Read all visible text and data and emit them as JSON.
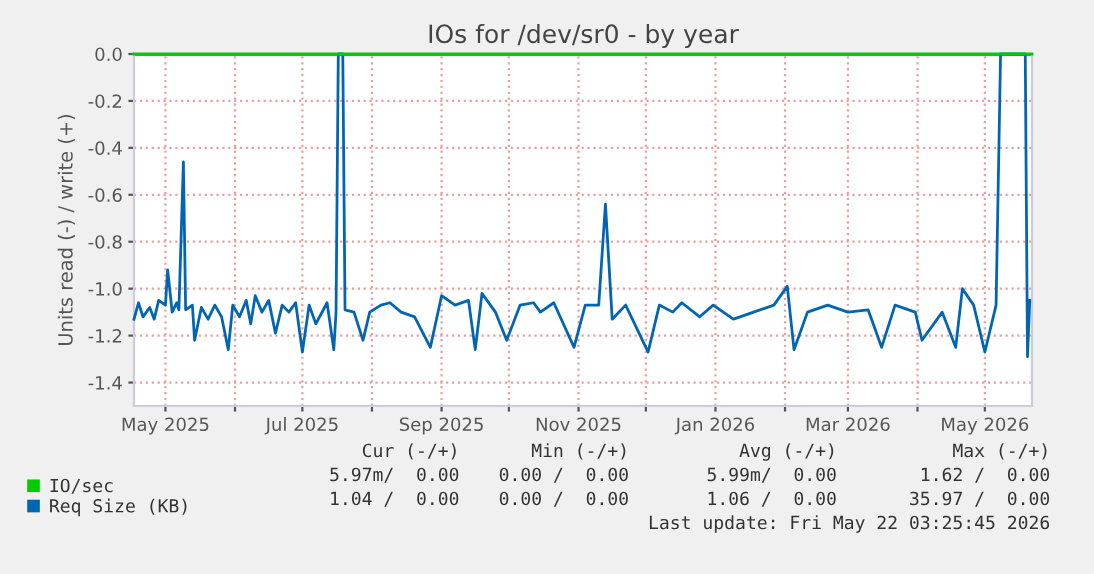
{
  "chart_data": {
    "type": "line",
    "title": "IOs for /dev/sr0 - by year",
    "ylabel": "Units read (-) / write (+)",
    "xlim": [
      "2025-04-17",
      "2026-05-22"
    ],
    "xticks": [
      {
        "value": "2025-05-01",
        "label": "May 2025"
      },
      {
        "value": "2025-06-01",
        "label": null
      },
      {
        "value": "2025-07-01",
        "label": "Jul 2025"
      },
      {
        "value": "2025-08-01",
        "label": null
      },
      {
        "value": "2025-09-01",
        "label": "Sep 2025"
      },
      {
        "value": "2025-10-01",
        "label": null
      },
      {
        "value": "2025-11-01",
        "label": "Nov 2025"
      },
      {
        "value": "2025-12-01",
        "label": null
      },
      {
        "value": "2026-01-01",
        "label": "Jan 2026"
      },
      {
        "value": "2026-02-01",
        "label": null
      },
      {
        "value": "2026-03-01",
        "label": "Mar 2026"
      },
      {
        "value": "2026-04-01",
        "label": null
      },
      {
        "value": "2026-05-01",
        "label": "May 2026"
      }
    ],
    "ylim": [
      -1.5,
      0
    ],
    "yticks": [
      {
        "value": -1.4,
        "label": "-1.4"
      },
      {
        "value": -1.2,
        "label": "-1.2"
      },
      {
        "value": -1.0,
        "label": "-1.0"
      },
      {
        "value": -0.8,
        "label": "-0.8"
      },
      {
        "value": -0.6,
        "label": "-0.6"
      },
      {
        "value": -0.4,
        "label": "-0.4"
      },
      {
        "value": -0.2,
        "label": "-0.2"
      },
      {
        "value": 0,
        "label": "0.0"
      }
    ],
    "grid": true,
    "legend": "bottom left",
    "ref_lines": [
      {
        "axis": "y",
        "value": 0,
        "color": "#000000"
      }
    ],
    "series": [
      {
        "name": "IO/sec",
        "color": "#00cc00",
        "x": [
          "2025-04-17",
          "2026-05-22"
        ],
        "values": [
          0,
          0
        ]
      },
      {
        "name": "Req Size (KB)",
        "color": "#0066b3",
        "x": [
          "2025-04-17",
          "2025-04-19",
          "2025-04-21",
          "2025-04-24",
          "2025-04-26",
          "2025-04-28",
          "2025-05-01",
          "2025-05-02",
          "2025-05-04",
          "2025-05-06",
          "2025-05-07",
          "2025-05-09",
          "2025-05-10",
          "2025-05-13",
          "2025-05-14",
          "2025-05-17",
          "2025-05-20",
          "2025-05-23",
          "2025-05-26",
          "2025-05-29",
          "2025-05-31",
          "2025-06-03",
          "2025-06-06",
          "2025-06-08",
          "2025-06-10",
          "2025-06-13",
          "2025-06-16",
          "2025-06-19",
          "2025-06-22",
          "2025-06-25",
          "2025-06-28",
          "2025-07-01",
          "2025-07-04",
          "2025-07-07",
          "2025-07-12",
          "2025-07-15",
          "2025-07-16",
          "2025-07-17",
          "2025-07-19",
          "2025-07-20",
          "2025-07-24",
          "2025-07-28",
          "2025-07-31",
          "2025-08-05",
          "2025-08-09",
          "2025-08-14",
          "2025-08-20",
          "2025-08-27",
          "2025-09-01",
          "2025-09-07",
          "2025-09-13",
          "2025-09-16",
          "2025-09-19",
          "2025-09-25",
          "2025-09-30",
          "2025-10-06",
          "2025-10-12",
          "2025-10-15",
          "2025-10-21",
          "2025-10-30",
          "2025-11-04",
          "2025-11-10",
          "2025-11-13",
          "2025-11-16",
          "2025-11-22",
          "2025-12-02",
          "2025-12-07",
          "2025-12-13",
          "2025-12-17",
          "2025-12-25",
          "2025-12-31",
          "2026-01-09",
          "2026-01-18",
          "2026-01-27",
          "2026-02-02",
          "2026-02-05",
          "2026-02-11",
          "2026-02-20",
          "2026-03-01",
          "2026-03-10",
          "2026-03-16",
          "2026-03-22",
          "2026-03-31",
          "2026-04-03",
          "2026-04-12",
          "2026-04-18",
          "2026-04-21",
          "2026-04-26",
          "2026-05-01",
          "2026-05-06",
          "2026-05-08",
          "2026-05-19",
          "2026-05-20",
          "2026-05-21"
        ],
        "values": [
          -1.13,
          -1.06,
          -1.12,
          -1.08,
          -1.13,
          -1.05,
          -1.07,
          -0.92,
          -1.1,
          -1.06,
          -1.09,
          -0.46,
          -1.09,
          -1.07,
          -1.22,
          -1.08,
          -1.13,
          -1.07,
          -1.12,
          -1.26,
          -1.07,
          -1.12,
          -1.05,
          -1.15,
          -1.03,
          -1.1,
          -1.05,
          -1.19,
          -1.07,
          -1.1,
          -1.06,
          -1.27,
          -1.07,
          -1.15,
          -1.06,
          -1.26,
          -1.1,
          0,
          0,
          -1.09,
          -1.1,
          -1.22,
          -1.1,
          -1.07,
          -1.06,
          -1.1,
          -1.12,
          -1.25,
          -1.03,
          -1.07,
          -1.05,
          -1.26,
          -1.02,
          -1.1,
          -1.22,
          -1.07,
          -1.06,
          -1.1,
          -1.06,
          -1.25,
          -1.07,
          -1.07,
          -0.64,
          -1.13,
          -1.07,
          -1.27,
          -1.07,
          -1.1,
          -1.06,
          -1.12,
          -1.07,
          -1.13,
          -1.1,
          -1.07,
          -0.99,
          -1.26,
          -1.1,
          -1.07,
          -1.1,
          -1.09,
          -1.25,
          -1.07,
          -1.1,
          -1.22,
          -1.1,
          -1.25,
          -1.0,
          -1.07,
          -1.27,
          -1.07,
          0,
          0,
          -1.29,
          -1.05
        ]
      }
    ],
    "annotations": [
      "Cur (-/+)",
      "Min (-/+)",
      "Avg (-/+)",
      "Max (-/+)",
      "5.97m/  0.00",
      "0.00 /  0.00",
      "5.99m/  0.00",
      "1.62 /  0.00",
      "1.04 /  0.00",
      "0.00 /  0.00",
      "1.06 /  0.00",
      "35.97 /  0.00",
      "Last update: Fri May 22 03:25:45 2026"
    ]
  }
}
